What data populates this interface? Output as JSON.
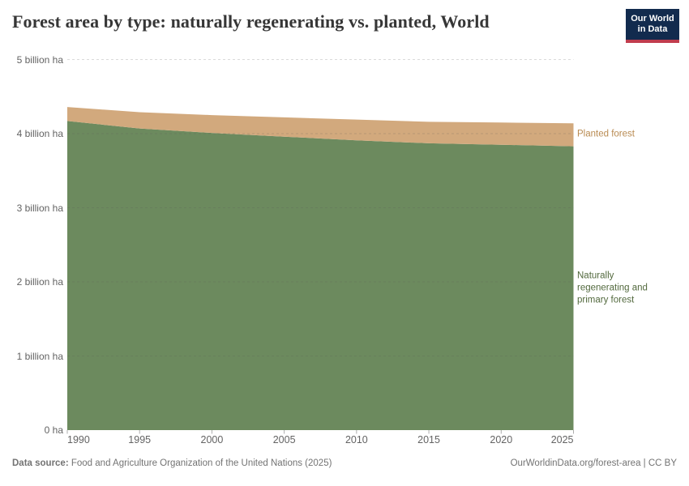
{
  "header": {
    "title": "Forest area by type: naturally regenerating vs. planted, World",
    "logo": {
      "line1": "Our World",
      "line2": "in Data",
      "bg_color": "#122b4e",
      "accent_color": "#c13d4e"
    }
  },
  "chart_data": {
    "type": "area",
    "stacked": true,
    "title": "Forest area by type: naturally regenerating vs. planted, World",
    "x": [
      1990,
      1995,
      2000,
      2005,
      2010,
      2015,
      2020,
      2025
    ],
    "x_tick_labels": [
      "1990",
      "1995",
      "2000",
      "2005",
      "2010",
      "2015",
      "2020",
      "2025"
    ],
    "series": [
      {
        "name": "Naturally regenerating and primary forest",
        "values": [
          4.17,
          4.07,
          4.01,
          3.96,
          3.91,
          3.87,
          3.85,
          3.83
        ],
        "color": "#6c8a5e",
        "label_color": "#52693d"
      },
      {
        "name": "Planted forest",
        "values": [
          0.19,
          0.22,
          0.24,
          0.26,
          0.28,
          0.29,
          0.3,
          0.31
        ],
        "color": "#d2a97d",
        "label_color": "#b98b52"
      }
    ],
    "unit": "billion ha",
    "ylim": [
      0,
      5
    ],
    "xlim": [
      1990,
      2025
    ],
    "y_ticks": [
      {
        "value": 0,
        "label": "0 ha"
      },
      {
        "value": 1,
        "label": "1 billion ha"
      },
      {
        "value": 2,
        "label": "2 billion ha"
      },
      {
        "value": 3,
        "label": "3 billion ha"
      },
      {
        "value": 4,
        "label": "4 billion ha"
      },
      {
        "value": 5,
        "label": "5 billion ha"
      }
    ],
    "grid": "dashed horizontal",
    "legend_position": "right-of-plot"
  },
  "footer": {
    "source_prefix": "Data source:",
    "source_text": " Food and Agriculture Organization of the United Nations (2025)",
    "credit": "OurWorldinData.org/forest-area | CC BY"
  }
}
